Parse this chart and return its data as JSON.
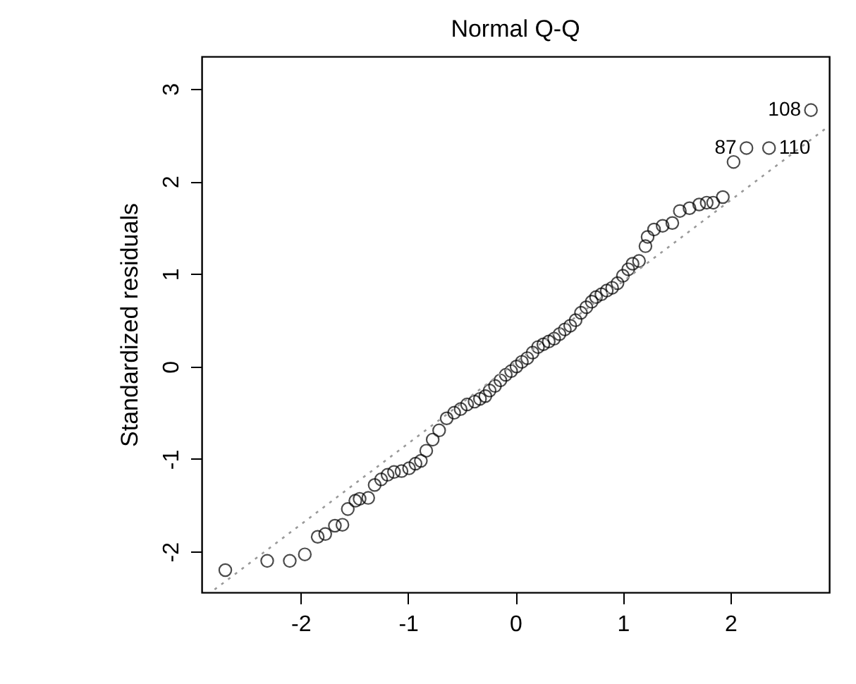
{
  "chart_data": {
    "type": "scatter",
    "title": "Normal Q-Q",
    "ylabel": "Standardized residuals",
    "xlim": [
      -2.92,
      2.92
    ],
    "ylim": [
      -2.44,
      3.35
    ],
    "xticks": [
      -2,
      -1,
      0,
      1,
      2
    ],
    "yticks": [
      -2,
      -1,
      0,
      1,
      2,
      3
    ],
    "grid": false,
    "series": [
      {
        "marker": "circle",
        "color": "#000000",
        "x": [
          -2.7,
          -2.31,
          -2.1,
          -1.96,
          -1.84,
          -1.77,
          -1.68,
          -1.61,
          -1.56,
          -1.49,
          -1.45,
          -1.37,
          -1.31,
          -1.25,
          -1.19,
          -1.13,
          -1.06,
          -0.99,
          -0.93,
          -0.88,
          -0.83,
          -0.77,
          -0.71,
          -0.64,
          -0.57,
          -0.51,
          -0.45,
          -0.38,
          -0.33,
          -0.28,
          -0.24,
          -0.19,
          -0.14,
          -0.09,
          -0.04,
          0.01,
          0.06,
          0.11,
          0.16,
          0.21,
          0.26,
          0.31,
          0.36,
          0.41,
          0.46,
          0.51,
          0.56,
          0.61,
          0.66,
          0.71,
          0.75,
          0.8,
          0.85,
          0.9,
          0.95,
          1.0,
          1.05,
          1.09,
          1.15,
          1.21,
          1.23,
          1.29,
          1.37,
          1.46,
          1.53,
          1.62,
          1.71,
          1.78,
          1.84,
          1.93,
          2.03,
          2.15,
          2.36,
          2.75
        ],
        "values": [
          -2.2,
          -2.1,
          -2.1,
          -2.03,
          -1.84,
          -1.81,
          -1.72,
          -1.71,
          -1.54,
          -1.45,
          -1.43,
          -1.42,
          -1.28,
          -1.22,
          -1.17,
          -1.14,
          -1.13,
          -1.1,
          -1.05,
          -1.02,
          -0.91,
          -0.79,
          -0.69,
          -0.56,
          -0.5,
          -0.46,
          -0.41,
          -0.38,
          -0.35,
          -0.32,
          -0.26,
          -0.21,
          -0.15,
          -0.09,
          -0.05,
          0.0,
          0.05,
          0.09,
          0.15,
          0.21,
          0.24,
          0.27,
          0.3,
          0.35,
          0.4,
          0.44,
          0.5,
          0.58,
          0.64,
          0.7,
          0.75,
          0.78,
          0.82,
          0.85,
          0.9,
          0.98,
          1.05,
          1.11,
          1.14,
          1.3,
          1.4,
          1.48,
          1.52,
          1.55,
          1.68,
          1.71,
          1.75,
          1.77,
          1.77,
          1.83,
          2.21,
          2.36,
          2.36,
          2.77
        ]
      },
      {
        "type": "line",
        "line_style": "dotted",
        "color": "#999999",
        "x": [
          -2.8,
          2.92
        ],
        "values": [
          -2.41,
          2.6
        ]
      }
    ],
    "annotations": [
      {
        "text": "108",
        "x": 2.75,
        "y": 2.77
      },
      {
        "text": "87",
        "x": 2.15,
        "y": 2.36
      },
      {
        "text": "110",
        "x": 2.36,
        "y": 2.36
      }
    ]
  }
}
